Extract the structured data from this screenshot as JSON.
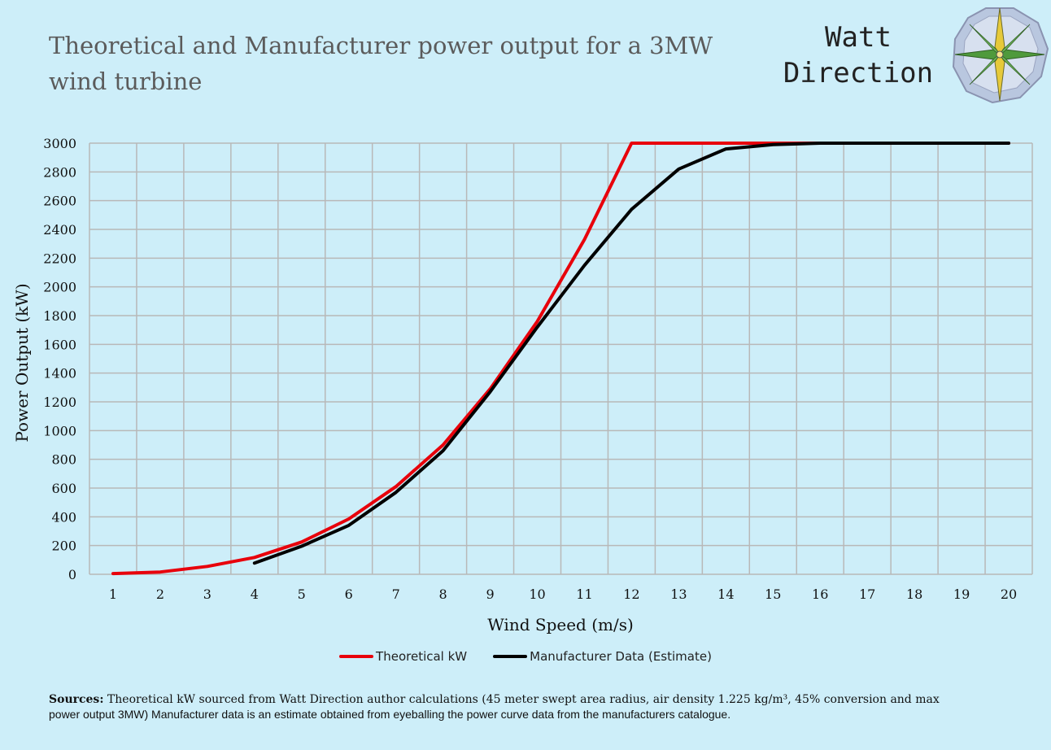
{
  "header": {
    "title": "Theoretical and Manufacturer power output for a 3MW wind turbine",
    "brand_line1": "Watt",
    "brand_line2": "Direction",
    "logo_icon": "compass-rose-icon"
  },
  "colors": {
    "background": "#cdeef9",
    "grid": "#b8b8b8",
    "theoretical": "#e8000b",
    "manufacturer": "#000000",
    "title_text": "#5b5b5b"
  },
  "chart_data": {
    "type": "line",
    "title": "Theoretical and Manufacturer power output for a 3MW wind turbine",
    "xlabel": "Wind Speed (m/s)",
    "ylabel": "Power Output (kW)",
    "x": [
      1,
      2,
      3,
      4,
      5,
      6,
      7,
      8,
      9,
      10,
      11,
      12,
      13,
      14,
      15,
      16,
      17,
      18,
      19,
      20
    ],
    "ylim": [
      0,
      3000
    ],
    "yticks": [
      0,
      200,
      400,
      600,
      800,
      1000,
      1200,
      1400,
      1600,
      1800,
      2000,
      2200,
      2400,
      2600,
      2800,
      3000
    ],
    "grid": true,
    "legend_position": "bottom",
    "series": [
      {
        "name": "Theoretical kW",
        "color": "#e8000b",
        "values": [
          5,
          16,
          55,
          117,
          225,
          385,
          610,
          900,
          1290,
          1760,
          2330,
          3000,
          3000,
          3000,
          3000,
          3000,
          3000,
          3000,
          3000,
          3000
        ]
      },
      {
        "name": "Manufacturer Data (Estimate)",
        "color": "#000000",
        "values": [
          null,
          null,
          null,
          78,
          195,
          340,
          570,
          860,
          1270,
          1720,
          2150,
          2540,
          2820,
          2960,
          2990,
          3000,
          3000,
          3000,
          3000,
          3000
        ]
      }
    ]
  },
  "legend": {
    "theoretical_label": "Theoretical kW",
    "manufacturer_label": "Manufacturer Data (Estimate)"
  },
  "sources": {
    "label": "Sources:",
    "text_part1": " Theoretical kW sourced from Watt Direction author calculations (45 meter swept area radius, air density 1.225 kg/m³, 45% conversion and max",
    "text_part2": "power output 3MW) Manufacturer data is an estimate obtained from eyeballing the power curve data from the manufacturers catalogue."
  }
}
